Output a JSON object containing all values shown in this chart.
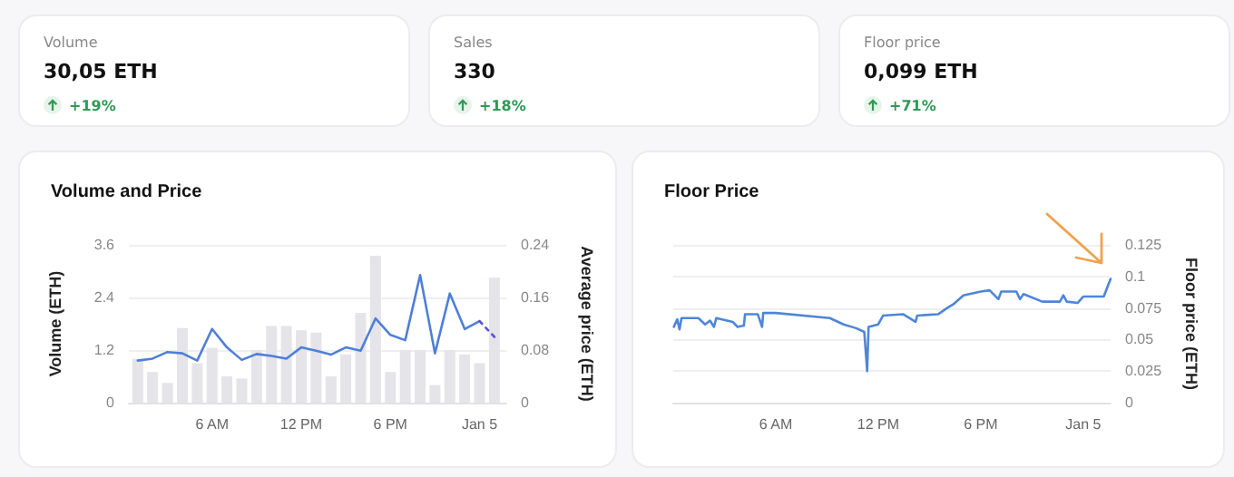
{
  "chart_data": [
    {
      "type": "other",
      "title": "Volume",
      "annotations": [
        "30,05 ETH",
        "+19%"
      ]
    },
    {
      "type": "other",
      "title": "Sales",
      "annotations": [
        "330",
        "+18%"
      ]
    },
    {
      "type": "other",
      "title": "Floor price",
      "annotations": [
        "0,099 ETH",
        "+71%"
      ]
    },
    {
      "type": "bar",
      "title": "Volume and Price",
      "ylabel": "Volume (ETH)",
      "y2label": "Average price (ETH)",
      "x": [
        "--01-04T01:00",
        "--01-04T02:00",
        "--01-04T03:00",
        "--01-04T04:00",
        "--01-04T05:00",
        "--01-04T06:00",
        "--01-04T07:00",
        "--01-04T08:00",
        "--01-04T09:00",
        "--01-04T10:00",
        "--01-04T11:00",
        "--01-04T12:00",
        "--01-04T13:00",
        "--01-04T14:00",
        "--01-04T15:00",
        "--01-04T16:00",
        "--01-04T17:00",
        "--01-04T18:00",
        "--01-04T19:00",
        "--01-04T20:00",
        "--01-04T21:00",
        "--01-04T22:00",
        "--01-04T23:00",
        "--01-05T00:00",
        "--01-05T01:00"
      ],
      "xlim": [
        "--01-04T00:24",
        "--01-05T01:48"
      ],
      "xticks": [
        {
          "value": "--01-04T06:00",
          "label": "6 AM"
        },
        {
          "value": "--01-04T12:00",
          "label": "12 PM"
        },
        {
          "value": "--01-04T18:00",
          "label": "6 PM"
        },
        {
          "value": "--01-05T00:00",
          "label": "Jan 5"
        }
      ],
      "ylim": [
        0,
        3.6
      ],
      "yticks": [
        0,
        1.2,
        2.4,
        3.6
      ],
      "y2lim": [
        0,
        0.24
      ],
      "y2ticks": [
        0,
        0.08,
        0.16,
        0.24
      ],
      "grid": "y",
      "marker": "none",
      "series": [
        {
          "type": "bar",
          "color": "#e4e4e9",
          "values": [
            1.0,
            0.7,
            0.45,
            1.7,
            0.9,
            1.25,
            0.6,
            0.55,
            1.2,
            1.75,
            1.75,
            1.65,
            1.6,
            0.6,
            1.1,
            2.05,
            3.35,
            0.7,
            1.2,
            1.2,
            0.4,
            1.2,
            1.1,
            0.9,
            2.85
          ]
        },
        {
          "type": "line",
          "axis": "y2",
          "color": "#4f7fd8",
          "line_style": "solid",
          "values": [
            0.064,
            0.067,
            0.077,
            0.075,
            0.064,
            0.112,
            0.084,
            0.065,
            0.074,
            0.071,
            0.067,
            0.084,
            0.079,
            0.073,
            0.084,
            0.079,
            0.128,
            0.103,
            0.095,
            0.194,
            0.075,
            0.166,
            0.112,
            0.124,
            null
          ]
        },
        {
          "type": "line",
          "axis": "y2",
          "color": "#5a52cf",
          "line_style": "dotted",
          "values": [
            null,
            null,
            null,
            null,
            null,
            null,
            null,
            null,
            null,
            null,
            null,
            null,
            null,
            null,
            null,
            null,
            null,
            null,
            null,
            null,
            null,
            null,
            null,
            0.124,
            0.1
          ]
        }
      ]
    },
    {
      "type": "line",
      "title": "Floor Price",
      "y2label": "Floor price (ETH)",
      "xlim": [
        "--01-04T00:00",
        "--01-05T01:36"
      ],
      "xticks": [
        {
          "value": "--01-04T06:00",
          "label": "6 AM"
        },
        {
          "value": "--01-04T12:00",
          "label": "12 PM"
        },
        {
          "value": "--01-04T18:00",
          "label": "6 PM"
        },
        {
          "value": "--01-05T00:00",
          "label": "Jan 5"
        }
      ],
      "y2lim": [
        0,
        0.125
      ],
      "y2ticks": [
        0,
        0.025,
        0.05,
        0.075,
        0.1,
        0.125
      ],
      "grid": "y",
      "marker": "none",
      "series": [
        {
          "axis": "y2",
          "color": "#4f86d6",
          "line_style": "solid",
          "x": [
            "--01-04T00:02",
            "--01-04T00:14",
            "--01-04T00:22",
            "--01-04T00:29",
            "--01-04T01:28",
            "--01-04T01:52",
            "--01-04T02:09",
            "--01-04T02:23",
            "--01-04T02:31",
            "--01-04T03:29",
            "--01-04T03:46",
            "--01-04T04:08",
            "--01-04T04:12",
            "--01-04T04:57",
            "--01-04T05:12",
            "--01-04T05:16",
            "--01-04T06:00",
            "--01-04T09:10",
            "--01-04T09:58",
            "--01-04T10:42",
            "--01-04T11:11",
            "--01-04T11:21",
            "--01-04T11:26",
            "--01-04T12:00",
            "--01-04T12:17",
            "--01-04T13:28",
            "--01-04T14:11",
            "--01-04T14:17",
            "--01-04T15:30",
            "--01-04T16:02",
            "--01-04T16:24",
            "--01-04T16:59",
            "--01-04T18:00",
            "--01-04T18:31",
            "--01-04T19:02",
            "--01-04T19:12",
            "--01-04T20:05",
            "--01-04T20:18",
            "--01-04T20:30",
            "--01-04T21:36",
            "--01-04T22:38",
            "--01-04T22:50",
            "--01-04T23:02",
            "--01-04T23:40",
            "--01-05T00:00",
            "--01-05T01:12",
            "--01-05T01:36"
          ],
          "values": [
            0.06,
            0.066,
            0.058,
            0.067,
            0.067,
            0.062,
            0.065,
            0.06,
            0.067,
            0.064,
            0.06,
            0.061,
            0.07,
            0.07,
            0.06,
            0.071,
            0.071,
            0.067,
            0.062,
            0.059,
            0.056,
            0.025,
            0.06,
            0.062,
            0.069,
            0.07,
            0.064,
            0.069,
            0.07,
            0.075,
            0.078,
            0.085,
            0.088,
            0.089,
            0.082,
            0.088,
            0.088,
            0.082,
            0.086,
            0.08,
            0.08,
            0.085,
            0.08,
            0.079,
            0.084,
            0.084,
            0.098
          ]
        }
      ]
    }
  ]
}
